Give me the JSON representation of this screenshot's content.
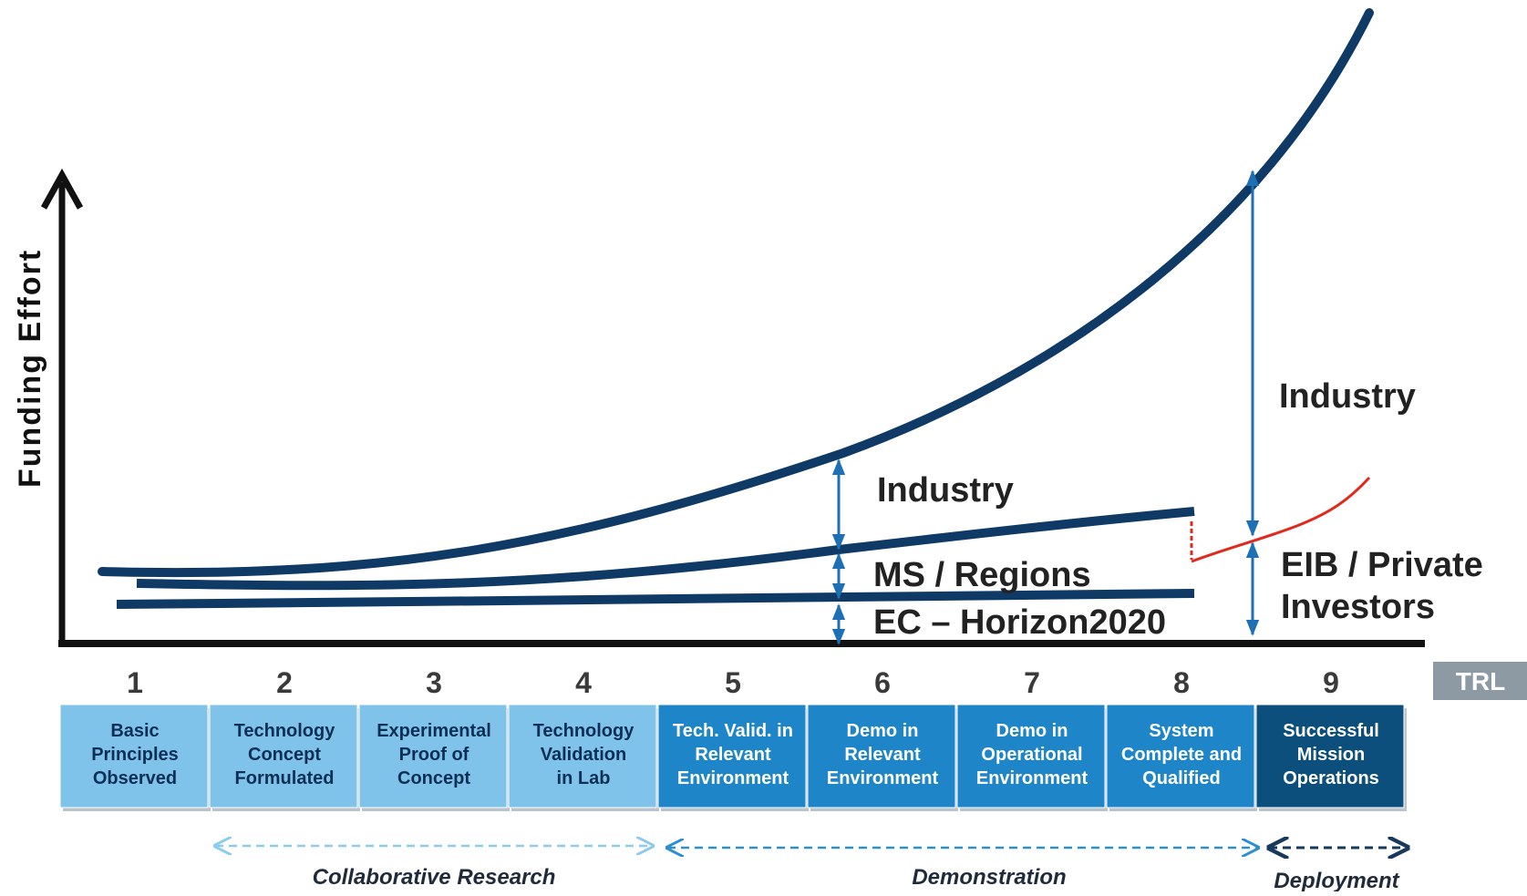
{
  "diagram": {
    "y_axis_label": "Funding Effort",
    "x_axis_tag": "TRL",
    "curve_labels": {
      "industry_mid": "Industry",
      "industry_right": "Industry",
      "ms_regions": "MS / Regions",
      "ec_horizon": "EC – Horizon2020",
      "eib_line1": "EIB / Private",
      "eib_line2": "Investors"
    },
    "trl_levels": [
      {
        "num": "1",
        "lines": [
          "Basic",
          "Principles",
          "Observed"
        ],
        "tone": "light"
      },
      {
        "num": "2",
        "lines": [
          "Technology",
          "Concept",
          "Formulated"
        ],
        "tone": "light"
      },
      {
        "num": "3",
        "lines": [
          "Experimental",
          "Proof of",
          "Concept"
        ],
        "tone": "light"
      },
      {
        "num": "4",
        "lines": [
          "Technology",
          "Validation",
          "in Lab"
        ],
        "tone": "light"
      },
      {
        "num": "5",
        "lines": [
          "Tech. Valid. in",
          "Relevant",
          "Environment"
        ],
        "tone": "medium"
      },
      {
        "num": "6",
        "lines": [
          "Demo in",
          "Relevant",
          "Environment"
        ],
        "tone": "medium"
      },
      {
        "num": "7",
        "lines": [
          "Demo in",
          "Operational",
          "Environment"
        ],
        "tone": "medium"
      },
      {
        "num": "8",
        "lines": [
          "System",
          "Complete and",
          "Qualified"
        ],
        "tone": "medium"
      },
      {
        "num": "9",
        "lines": [
          "Successful",
          "Mission",
          "Operations"
        ],
        "tone": "dark"
      }
    ],
    "phases": [
      {
        "label": "Collaborative Research",
        "tone": "light"
      },
      {
        "label": "Demonstration",
        "tone": "medium"
      },
      {
        "label": "Deployment",
        "tone": "dark"
      }
    ],
    "colors": {
      "curve": "#0f3a66",
      "arrow": "#1f6fb5",
      "red_curve": "#e02a1e",
      "box_light": "#7fc3ea",
      "box_medium": "#1e86c8",
      "box_dark": "#0d4f7c",
      "tag": "#8d9aa3"
    }
  }
}
